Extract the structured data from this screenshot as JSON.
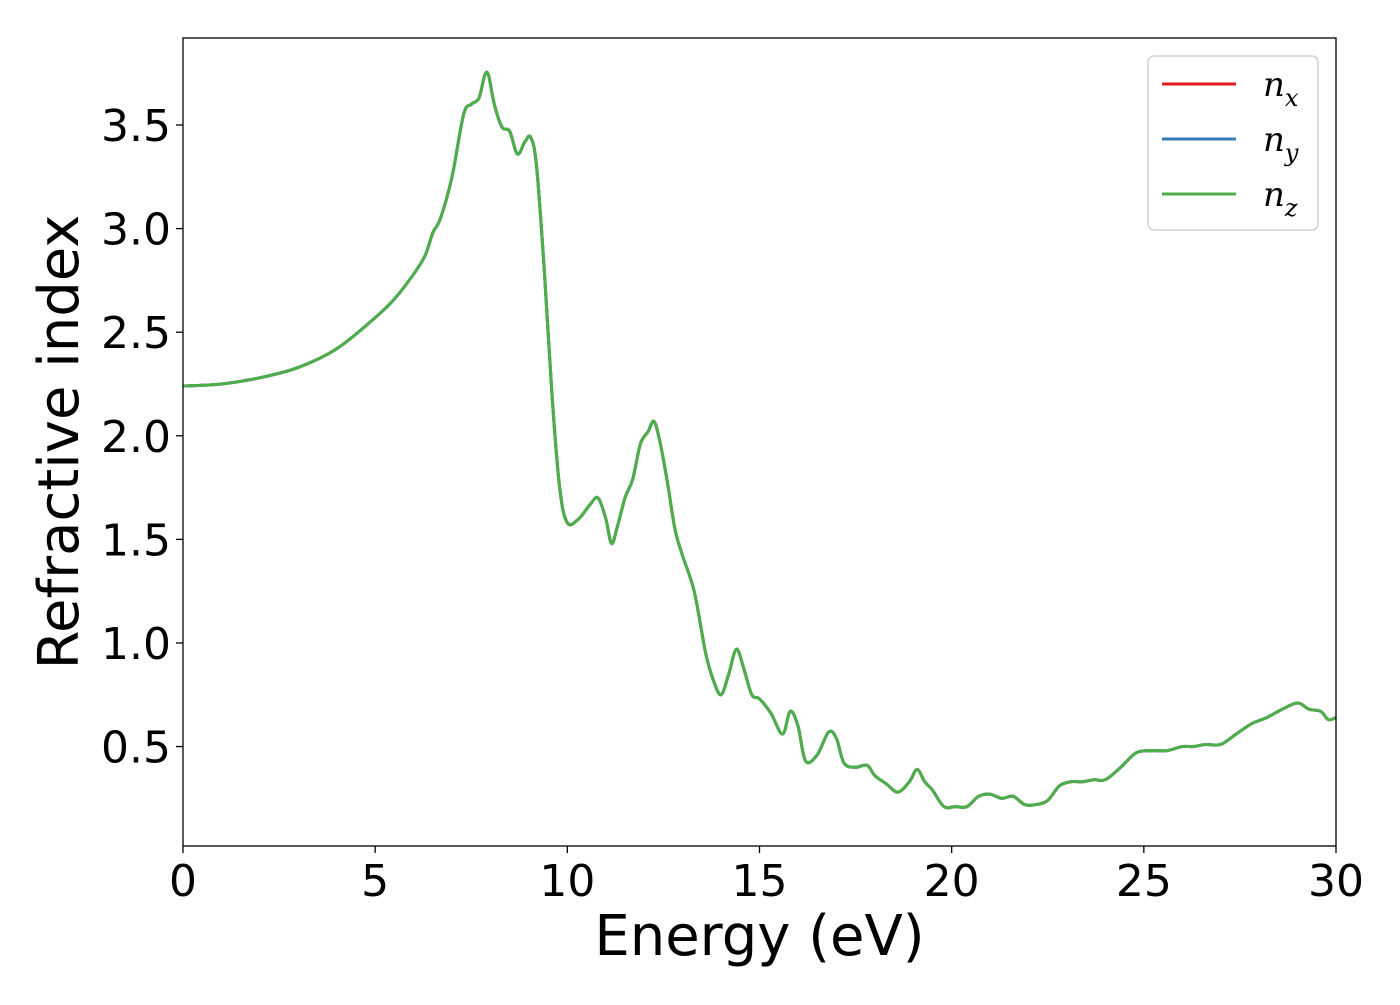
{
  "chart_data": {
    "type": "line",
    "title": "",
    "xlabel": "Energy (eV)",
    "ylabel": "Refractive index",
    "xlim": [
      0,
      30
    ],
    "ylim": [
      0.02,
      3.92
    ],
    "xticks": [
      0,
      5,
      10,
      15,
      20,
      25,
      30
    ],
    "xtick_labels": [
      "0",
      "5",
      "10",
      "15",
      "20",
      "25",
      "30"
    ],
    "yticks": [
      0.5,
      1.0,
      1.5,
      2.0,
      2.5,
      3.0,
      3.5
    ],
    "ytick_labels": [
      "0.5",
      "1.0",
      "1.5",
      "2.0",
      "2.5",
      "3.0",
      "3.5"
    ],
    "grid": false,
    "legend_position": "top-right",
    "x": [
      0,
      1,
      2,
      3,
      4,
      5,
      5.5,
      6,
      6.3,
      6.5,
      6.7,
      7,
      7.3,
      7.5,
      7.7,
      7.85,
      7.95,
      8.1,
      8.3,
      8.5,
      8.7,
      8.9,
      9.05,
      9.2,
      9.4,
      9.6,
      9.8,
      10.0,
      10.3,
      10.6,
      10.8,
      11.0,
      11.15,
      11.3,
      11.5,
      11.7,
      11.9,
      12.1,
      12.25,
      12.4,
      12.6,
      12.8,
      13.0,
      13.3,
      13.6,
      13.8,
      14.0,
      14.2,
      14.4,
      14.6,
      14.8,
      15.0,
      15.3,
      15.6,
      15.8,
      16.0,
      16.2,
      16.5,
      16.8,
      17.0,
      17.2,
      17.5,
      17.8,
      18.0,
      18.3,
      18.6,
      18.9,
      19.1,
      19.3,
      19.5,
      19.8,
      20.1,
      20.4,
      20.7,
      21.0,
      21.3,
      21.6,
      21.9,
      22.2,
      22.5,
      22.8,
      23.1,
      23.4,
      23.7,
      24.0,
      24.4,
      24.8,
      25.2,
      25.6,
      26.0,
      26.3,
      26.6,
      27.0,
      27.4,
      27.8,
      28.2,
      28.6,
      29.0,
      29.3,
      29.6,
      29.8,
      30.0
    ],
    "series": [
      {
        "name": "n_x",
        "legend_base": "n",
        "legend_sub": "x",
        "color": "#e41a1c",
        "y": [
          2.24,
          2.25,
          2.28,
          2.33,
          2.42,
          2.57,
          2.66,
          2.78,
          2.87,
          2.98,
          3.05,
          3.25,
          3.55,
          3.6,
          3.63,
          3.74,
          3.74,
          3.6,
          3.49,
          3.47,
          3.36,
          3.42,
          3.44,
          3.3,
          2.8,
          2.2,
          1.75,
          1.58,
          1.6,
          1.67,
          1.7,
          1.6,
          1.48,
          1.56,
          1.7,
          1.79,
          1.96,
          2.02,
          2.07,
          1.98,
          1.78,
          1.55,
          1.42,
          1.25,
          0.95,
          0.82,
          0.75,
          0.85,
          0.97,
          0.87,
          0.75,
          0.73,
          0.66,
          0.56,
          0.67,
          0.6,
          0.43,
          0.46,
          0.57,
          0.54,
          0.42,
          0.4,
          0.41,
          0.36,
          0.32,
          0.28,
          0.33,
          0.39,
          0.33,
          0.29,
          0.21,
          0.21,
          0.21,
          0.26,
          0.27,
          0.25,
          0.26,
          0.22,
          0.22,
          0.24,
          0.31,
          0.33,
          0.33,
          0.34,
          0.34,
          0.4,
          0.47,
          0.48,
          0.48,
          0.5,
          0.5,
          0.51,
          0.51,
          0.56,
          0.61,
          0.64,
          0.68,
          0.71,
          0.68,
          0.67,
          0.63,
          0.64
        ]
      },
      {
        "name": "n_y",
        "legend_base": "n",
        "legend_sub": "y",
        "color": "#377eb8",
        "y": [
          2.24,
          2.25,
          2.28,
          2.33,
          2.42,
          2.57,
          2.66,
          2.78,
          2.87,
          2.98,
          3.05,
          3.25,
          3.55,
          3.6,
          3.63,
          3.74,
          3.74,
          3.6,
          3.49,
          3.47,
          3.36,
          3.42,
          3.44,
          3.3,
          2.8,
          2.2,
          1.75,
          1.58,
          1.6,
          1.67,
          1.7,
          1.6,
          1.48,
          1.56,
          1.7,
          1.79,
          1.96,
          2.02,
          2.07,
          1.98,
          1.78,
          1.55,
          1.42,
          1.25,
          0.95,
          0.82,
          0.75,
          0.85,
          0.97,
          0.87,
          0.75,
          0.73,
          0.66,
          0.56,
          0.67,
          0.6,
          0.43,
          0.46,
          0.57,
          0.54,
          0.42,
          0.4,
          0.41,
          0.36,
          0.32,
          0.28,
          0.33,
          0.39,
          0.33,
          0.29,
          0.21,
          0.21,
          0.21,
          0.26,
          0.27,
          0.25,
          0.26,
          0.22,
          0.22,
          0.24,
          0.31,
          0.33,
          0.33,
          0.34,
          0.34,
          0.4,
          0.47,
          0.48,
          0.48,
          0.5,
          0.5,
          0.51,
          0.51,
          0.56,
          0.61,
          0.64,
          0.68,
          0.71,
          0.68,
          0.67,
          0.63,
          0.64
        ]
      },
      {
        "name": "n_z",
        "legend_base": "n",
        "legend_sub": "z",
        "color": "#4daf4a",
        "y": [
          2.24,
          2.25,
          2.28,
          2.33,
          2.42,
          2.57,
          2.66,
          2.78,
          2.87,
          2.98,
          3.05,
          3.25,
          3.55,
          3.6,
          3.63,
          3.74,
          3.74,
          3.6,
          3.49,
          3.47,
          3.36,
          3.42,
          3.44,
          3.3,
          2.8,
          2.2,
          1.75,
          1.58,
          1.6,
          1.67,
          1.7,
          1.6,
          1.48,
          1.56,
          1.7,
          1.79,
          1.96,
          2.02,
          2.07,
          1.98,
          1.78,
          1.55,
          1.42,
          1.25,
          0.95,
          0.82,
          0.75,
          0.85,
          0.97,
          0.87,
          0.75,
          0.73,
          0.66,
          0.56,
          0.67,
          0.6,
          0.43,
          0.46,
          0.57,
          0.54,
          0.42,
          0.4,
          0.41,
          0.36,
          0.32,
          0.28,
          0.33,
          0.39,
          0.33,
          0.29,
          0.21,
          0.21,
          0.21,
          0.26,
          0.27,
          0.25,
          0.26,
          0.22,
          0.22,
          0.24,
          0.31,
          0.33,
          0.33,
          0.34,
          0.34,
          0.4,
          0.47,
          0.48,
          0.48,
          0.5,
          0.5,
          0.51,
          0.51,
          0.56,
          0.61,
          0.64,
          0.68,
          0.71,
          0.68,
          0.67,
          0.63,
          0.64
        ]
      }
    ]
  }
}
